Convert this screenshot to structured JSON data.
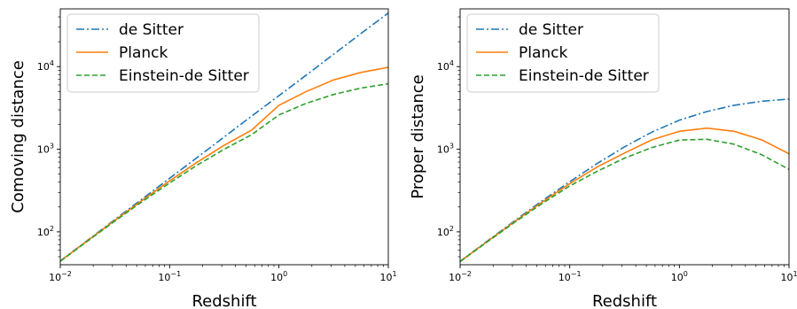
{
  "chart_data": [
    {
      "type": "line",
      "xlabel": "Redshift",
      "ylabel": "Comoving distance",
      "xscale": "log",
      "yscale": "log",
      "xlim": [
        0.01,
        10
      ],
      "ylim": [
        40,
        50000
      ],
      "xticks": [
        {
          "base": "10",
          "exp": "−2"
        },
        {
          "base": "10",
          "exp": "−1"
        },
        {
          "base": "10",
          "exp": "0"
        },
        {
          "base": "10",
          "exp": "1"
        }
      ],
      "yticks": [
        {
          "base": "10",
          "exp": "2"
        },
        {
          "base": "10",
          "exp": "3"
        },
        {
          "base": "10",
          "exp": "4"
        }
      ],
      "legend": "top-left",
      "grid": false,
      "x": [
        0.01,
        0.0178,
        0.0316,
        0.0562,
        0.1,
        0.178,
        0.316,
        0.562,
        1.0,
        1.78,
        3.16,
        5.62,
        10.0
      ],
      "series": [
        {
          "name": "de Sitter",
          "color": "#1f77b4",
          "dash": "dashdot",
          "values": [
            44.5,
            79.2,
            141,
            251,
            445,
            792,
            1410,
            2510,
            4450,
            7920,
            14100,
            25100,
            44500
          ]
        },
        {
          "name": "Planck",
          "color": "#ff7f0e",
          "dash": "solid",
          "values": [
            44.3,
            78.5,
            138,
            241,
            414,
            695,
            1120,
            1700,
            3400,
            5000,
            6900,
            8500,
            9800
          ]
        },
        {
          "name": "Einstein-de Sitter",
          "color": "#2ca02c",
          "dash": "dashed",
          "values": [
            44.0,
            77.5,
            135,
            233,
            390,
            640,
            1000,
            1500,
            2600,
            3600,
            4600,
            5500,
            6200
          ]
        }
      ]
    },
    {
      "type": "line",
      "xlabel": "Redshift",
      "ylabel": "Proper distance",
      "xscale": "log",
      "yscale": "log",
      "xlim": [
        0.01,
        10
      ],
      "ylim": [
        40,
        50000
      ],
      "xticks": [
        {
          "base": "10",
          "exp": "−2"
        },
        {
          "base": "10",
          "exp": "−1"
        },
        {
          "base": "10",
          "exp": "0"
        },
        {
          "base": "10",
          "exp": "1"
        }
      ],
      "yticks": [
        {
          "base": "10",
          "exp": "2"
        },
        {
          "base": "10",
          "exp": "3"
        },
        {
          "base": "10",
          "exp": "4"
        }
      ],
      "legend": "top-left",
      "grid": false,
      "x": [
        0.01,
        0.0178,
        0.0316,
        0.0562,
        0.1,
        0.178,
        0.316,
        0.562,
        1.0,
        1.78,
        3.16,
        5.62,
        10.0
      ],
      "series": [
        {
          "name": "de Sitter",
          "color": "#1f77b4",
          "dash": "dashdot",
          "values": [
            44.0,
            77.8,
            137,
            238,
            405,
            672,
            1070,
            1610,
            2250,
            2860,
            3400,
            3800,
            4050
          ]
        },
        {
          "name": "Planck",
          "color": "#ff7f0e",
          "dash": "solid",
          "values": [
            43.8,
            77.0,
            134,
            230,
            383,
            610,
            900,
            1300,
            1650,
            1800,
            1650,
            1300,
            880
          ]
        },
        {
          "name": "Einstein-de Sitter",
          "color": "#2ca02c",
          "dash": "dashed",
          "values": [
            43.6,
            76.2,
            131,
            221,
            360,
            540,
            780,
            1050,
            1290,
            1320,
            1150,
            860,
            570
          ]
        }
      ]
    }
  ]
}
